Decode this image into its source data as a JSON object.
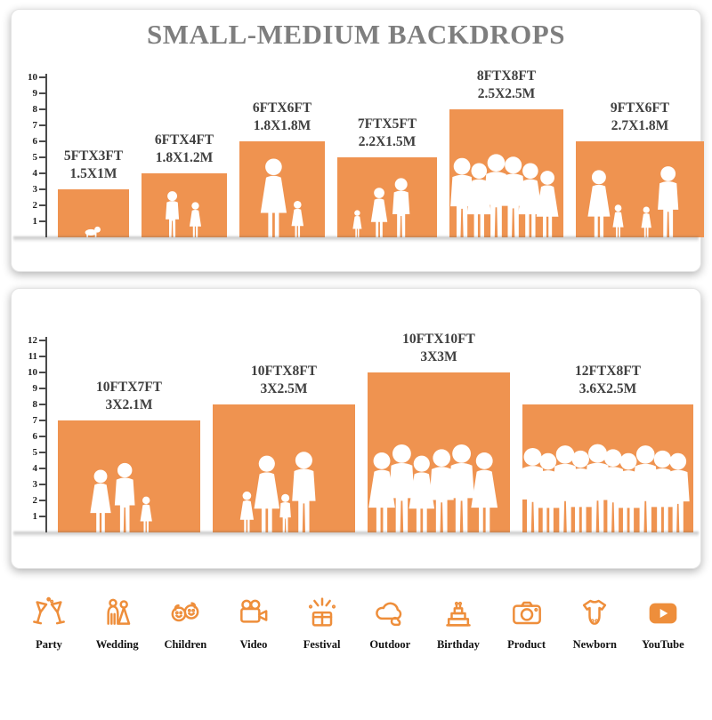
{
  "title": "SMALL-MEDIUM BACKDROPS",
  "colors": {
    "accent": "#ef9350",
    "title": "#7e7e7e",
    "icon": "#ee8e3b"
  },
  "panel1": {
    "ruler_max": 10,
    "items": [
      {
        "ft": "5FTX3FT",
        "m": "1.5X1M",
        "w": 5,
        "h": 3,
        "people": [
          {
            "t": "baby",
            "h": 0.6,
            "x": 0.48
          }
        ]
      },
      {
        "ft": "6FTX4FT",
        "m": "1.8X1.2M",
        "w": 6,
        "h": 4,
        "people": [
          {
            "t": "man",
            "h": 0.72,
            "x": 0.36
          },
          {
            "t": "woman",
            "h": 0.55,
            "x": 0.63
          }
        ]
      },
      {
        "ft": "6FTX6FT",
        "m": "1.8X1.8M",
        "w": 6,
        "h": 6,
        "people": [
          {
            "t": "woman",
            "h": 0.82,
            "x": 0.4
          },
          {
            "t": "woman",
            "h": 0.38,
            "x": 0.68
          }
        ]
      },
      {
        "ft": "7FTX5FT",
        "m": "2.2X1.5M",
        "w": 7,
        "h": 5,
        "people": [
          {
            "t": "woman",
            "h": 0.34,
            "x": 0.2
          },
          {
            "t": "woman",
            "h": 0.62,
            "x": 0.42
          },
          {
            "t": "man",
            "h": 0.74,
            "x": 0.64
          }
        ]
      },
      {
        "ft": "8FTX8FT",
        "m": "2.5X2.5M",
        "w": 8,
        "h": 8,
        "people": [
          {
            "t": "man",
            "h": 0.62,
            "x": 0.11
          },
          {
            "t": "woman",
            "h": 0.58,
            "x": 0.26
          },
          {
            "t": "man",
            "h": 0.65,
            "x": 0.41
          },
          {
            "t": "man",
            "h": 0.63,
            "x": 0.56
          },
          {
            "t": "woman",
            "h": 0.58,
            "x": 0.71
          },
          {
            "t": "woman",
            "h": 0.52,
            "x": 0.86
          }
        ]
      },
      {
        "ft": "9FTX6FT",
        "m": "2.7X1.8M",
        "w": 9,
        "h": 6,
        "people": [
          {
            "t": "woman",
            "h": 0.7,
            "x": 0.18
          },
          {
            "t": "woman",
            "h": 0.34,
            "x": 0.33
          },
          {
            "t": "woman",
            "h": 0.32,
            "x": 0.55
          },
          {
            "t": "man",
            "h": 0.74,
            "x": 0.72
          }
        ]
      }
    ]
  },
  "panel2": {
    "ruler_max": 12,
    "items": [
      {
        "ft": "10FTX7FT",
        "m": "3X2.1M",
        "w": 10,
        "h": 7,
        "people": [
          {
            "t": "woman",
            "h": 0.56,
            "x": 0.3
          },
          {
            "t": "man",
            "h": 0.62,
            "x": 0.47
          },
          {
            "t": "woman",
            "h": 0.32,
            "x": 0.62
          }
        ]
      },
      {
        "ft": "10FTX8FT",
        "m": "3X2.5M",
        "w": 10,
        "h": 8,
        "people": [
          {
            "t": "woman",
            "h": 0.32,
            "x": 0.24
          },
          {
            "t": "woman",
            "h": 0.6,
            "x": 0.38
          },
          {
            "t": "man",
            "h": 0.3,
            "x": 0.51
          },
          {
            "t": "man",
            "h": 0.63,
            "x": 0.64
          }
        ]
      },
      {
        "ft": "10FTX10FT",
        "m": "3X3M",
        "w": 10,
        "h": 10,
        "people": [
          {
            "t": "woman",
            "h": 0.5,
            "x": 0.1
          },
          {
            "t": "man",
            "h": 0.55,
            "x": 0.24
          },
          {
            "t": "woman",
            "h": 0.48,
            "x": 0.38
          },
          {
            "t": "man",
            "h": 0.52,
            "x": 0.52
          },
          {
            "t": "man",
            "h": 0.55,
            "x": 0.66
          },
          {
            "t": "woman",
            "h": 0.5,
            "x": 0.82
          }
        ]
      },
      {
        "ft": "12FTX8FT",
        "m": "3.6X2.5M",
        "w": 12,
        "h": 8,
        "people": [
          {
            "t": "man",
            "h": 0.66,
            "x": 0.06
          },
          {
            "t": "woman",
            "h": 0.62,
            "x": 0.15
          },
          {
            "t": "man",
            "h": 0.68,
            "x": 0.25
          },
          {
            "t": "woman",
            "h": 0.64,
            "x": 0.34
          },
          {
            "t": "man",
            "h": 0.69,
            "x": 0.44
          },
          {
            "t": "man",
            "h": 0.65,
            "x": 0.53
          },
          {
            "t": "woman",
            "h": 0.62,
            "x": 0.62
          },
          {
            "t": "man",
            "h": 0.68,
            "x": 0.72
          },
          {
            "t": "woman",
            "h": 0.64,
            "x": 0.82
          },
          {
            "t": "man",
            "h": 0.62,
            "x": 0.91
          }
        ]
      }
    ]
  },
  "categories": [
    {
      "label": "Party"
    },
    {
      "label": "Wedding"
    },
    {
      "label": "Children"
    },
    {
      "label": "Video"
    },
    {
      "label": "Festival"
    },
    {
      "label": "Outdoor"
    },
    {
      "label": "Birthday"
    },
    {
      "label": "Product"
    },
    {
      "label": "Newborn"
    },
    {
      "label": "YouTube"
    }
  ]
}
